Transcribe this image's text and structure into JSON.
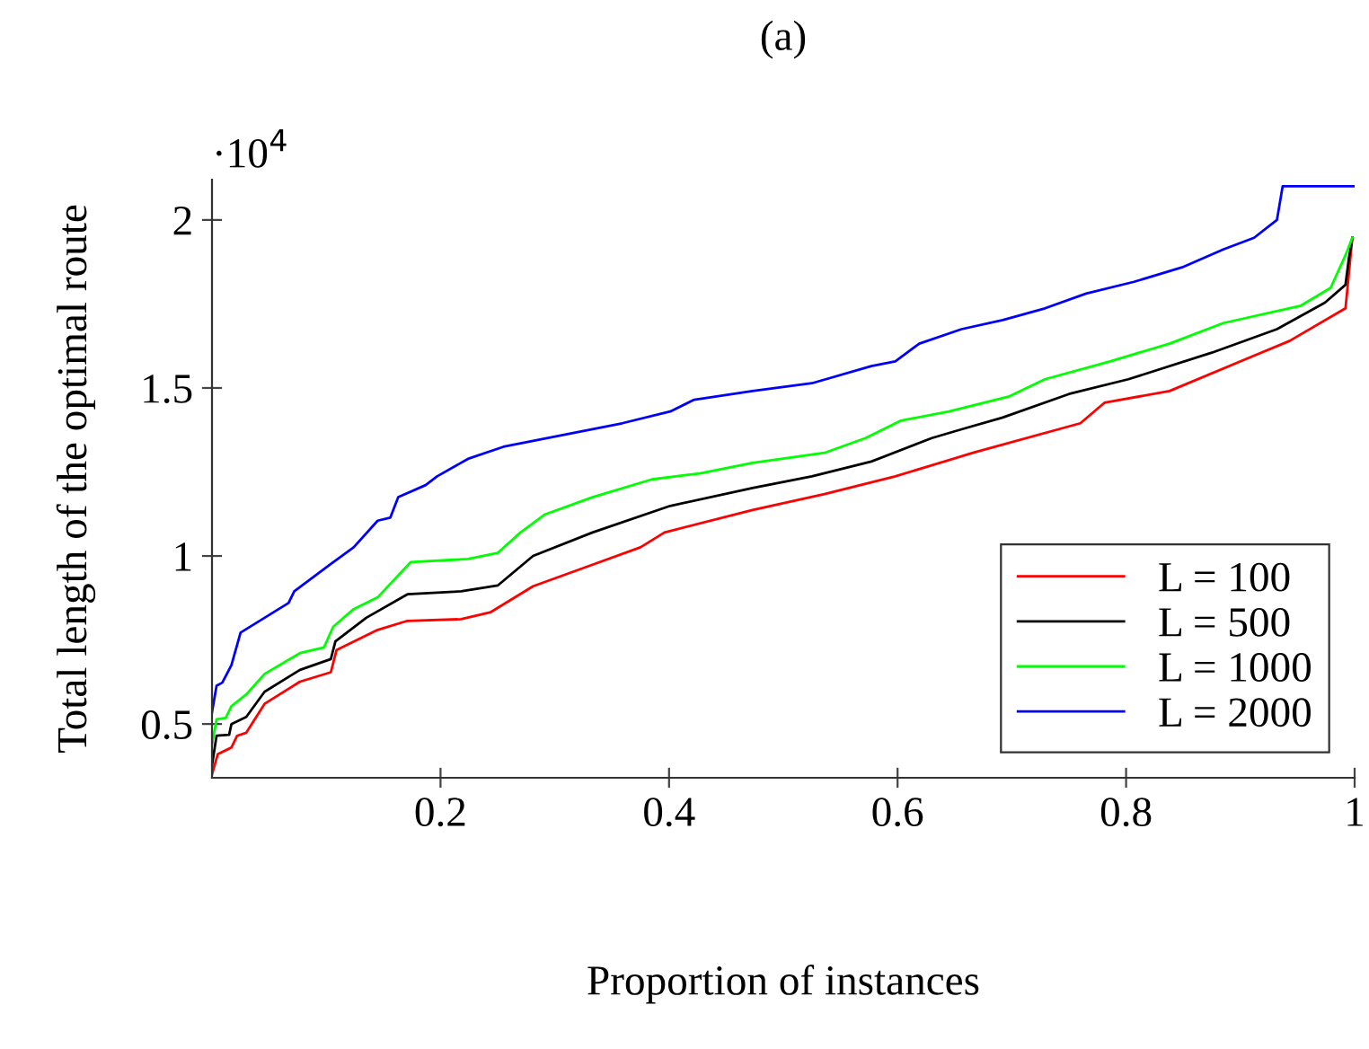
{
  "chart_data": {
    "type": "line",
    "title": "(a)",
    "xlabel": "Proportion of instances",
    "ylabel": "Total length of the optimal route",
    "annotations": [
      "·10$^{4}$"
    ],
    "xlim": [
      0,
      1
    ],
    "ylim": [
      0.34,
      2.12
    ],
    "xticks": [
      0.2,
      0.4,
      0.6,
      0.8,
      1
    ],
    "yticks": [
      0.5,
      1,
      1.5,
      2
    ],
    "grid": false,
    "legend": "bottom right",
    "marker": "none",
    "line_style": "solid",
    "series": [
      {
        "name": "L = 100",
        "color": "#ff0000",
        "x": [
          0,
          0.005,
          0.017,
          0.022,
          0.03,
          0.046,
          0.077,
          0.104,
          0.109,
          0.145,
          0.171,
          0.218,
          0.244,
          0.281,
          0.333,
          0.375,
          0.396,
          0.473,
          0.536,
          0.598,
          0.666,
          0.76,
          0.781,
          0.838,
          0.912,
          0.943,
          0.992,
          0.998
        ],
        "values": [
          0.35,
          0.41,
          0.43,
          0.465,
          0.474,
          0.56,
          0.626,
          0.654,
          0.72,
          0.78,
          0.807,
          0.812,
          0.833,
          0.91,
          0.974,
          1.026,
          1.07,
          1.137,
          1.184,
          1.237,
          1.307,
          1.395,
          1.456,
          1.491,
          1.596,
          1.64,
          1.737,
          1.947
        ]
      },
      {
        "name": "L = 500",
        "color": "#000000",
        "x": [
          0,
          0.004,
          0.015,
          0.017,
          0.03,
          0.046,
          0.077,
          0.104,
          0.108,
          0.135,
          0.171,
          0.218,
          0.25,
          0.281,
          0.333,
          0.401,
          0.473,
          0.525,
          0.577,
          0.63,
          0.656,
          0.692,
          0.75,
          0.802,
          0.875,
          0.932,
          0.974,
          0.992,
          0.995,
          0.998
        ],
        "values": [
          0.377,
          0.465,
          0.468,
          0.5,
          0.521,
          0.596,
          0.661,
          0.693,
          0.746,
          0.816,
          0.886,
          0.895,
          0.912,
          1.0,
          1.07,
          1.149,
          1.202,
          1.237,
          1.281,
          1.351,
          1.377,
          1.412,
          1.482,
          1.526,
          1.605,
          1.675,
          1.754,
          1.807,
          1.886,
          1.947
        ]
      },
      {
        "name": "L = 1000",
        "color": "#00ff00",
        "x": [
          0,
          0.004,
          0.012,
          0.017,
          0.03,
          0.046,
          0.077,
          0.098,
          0.106,
          0.124,
          0.145,
          0.174,
          0.224,
          0.25,
          0.27,
          0.291,
          0.333,
          0.385,
          0.427,
          0.473,
          0.536,
          0.572,
          0.603,
          0.645,
          0.697,
          0.729,
          0.786,
          0.838,
          0.885,
          0.953,
          0.979,
          0.992,
          0.998
        ],
        "values": [
          0.439,
          0.514,
          0.518,
          0.553,
          0.588,
          0.649,
          0.711,
          0.728,
          0.789,
          0.842,
          0.877,
          0.982,
          0.991,
          1.009,
          1.07,
          1.123,
          1.175,
          1.228,
          1.246,
          1.277,
          1.307,
          1.351,
          1.403,
          1.43,
          1.474,
          1.526,
          1.579,
          1.632,
          1.693,
          1.745,
          1.798,
          1.895,
          1.947
        ]
      },
      {
        "name": "L = 2000",
        "color": "#0000ff",
        "x": [
          0,
          0.004,
          0.009,
          0.017,
          0.025,
          0.046,
          0.067,
          0.072,
          0.103,
          0.124,
          0.145,
          0.156,
          0.163,
          0.187,
          0.197,
          0.224,
          0.255,
          0.307,
          0.359,
          0.401,
          0.422,
          0.473,
          0.525,
          0.577,
          0.598,
          0.619,
          0.656,
          0.692,
          0.729,
          0.765,
          0.807,
          0.849,
          0.885,
          0.912,
          0.932,
          0.937,
          1.0
        ],
        "values": [
          0.535,
          0.614,
          0.623,
          0.675,
          0.772,
          0.816,
          0.86,
          0.895,
          0.974,
          1.026,
          1.105,
          1.114,
          1.175,
          1.211,
          1.237,
          1.289,
          1.325,
          1.36,
          1.395,
          1.43,
          1.465,
          1.491,
          1.514,
          1.565,
          1.579,
          1.632,
          1.675,
          1.702,
          1.737,
          1.781,
          1.816,
          1.859,
          1.912,
          1.947,
          2.0,
          2.1,
          2.1
        ]
      }
    ]
  }
}
